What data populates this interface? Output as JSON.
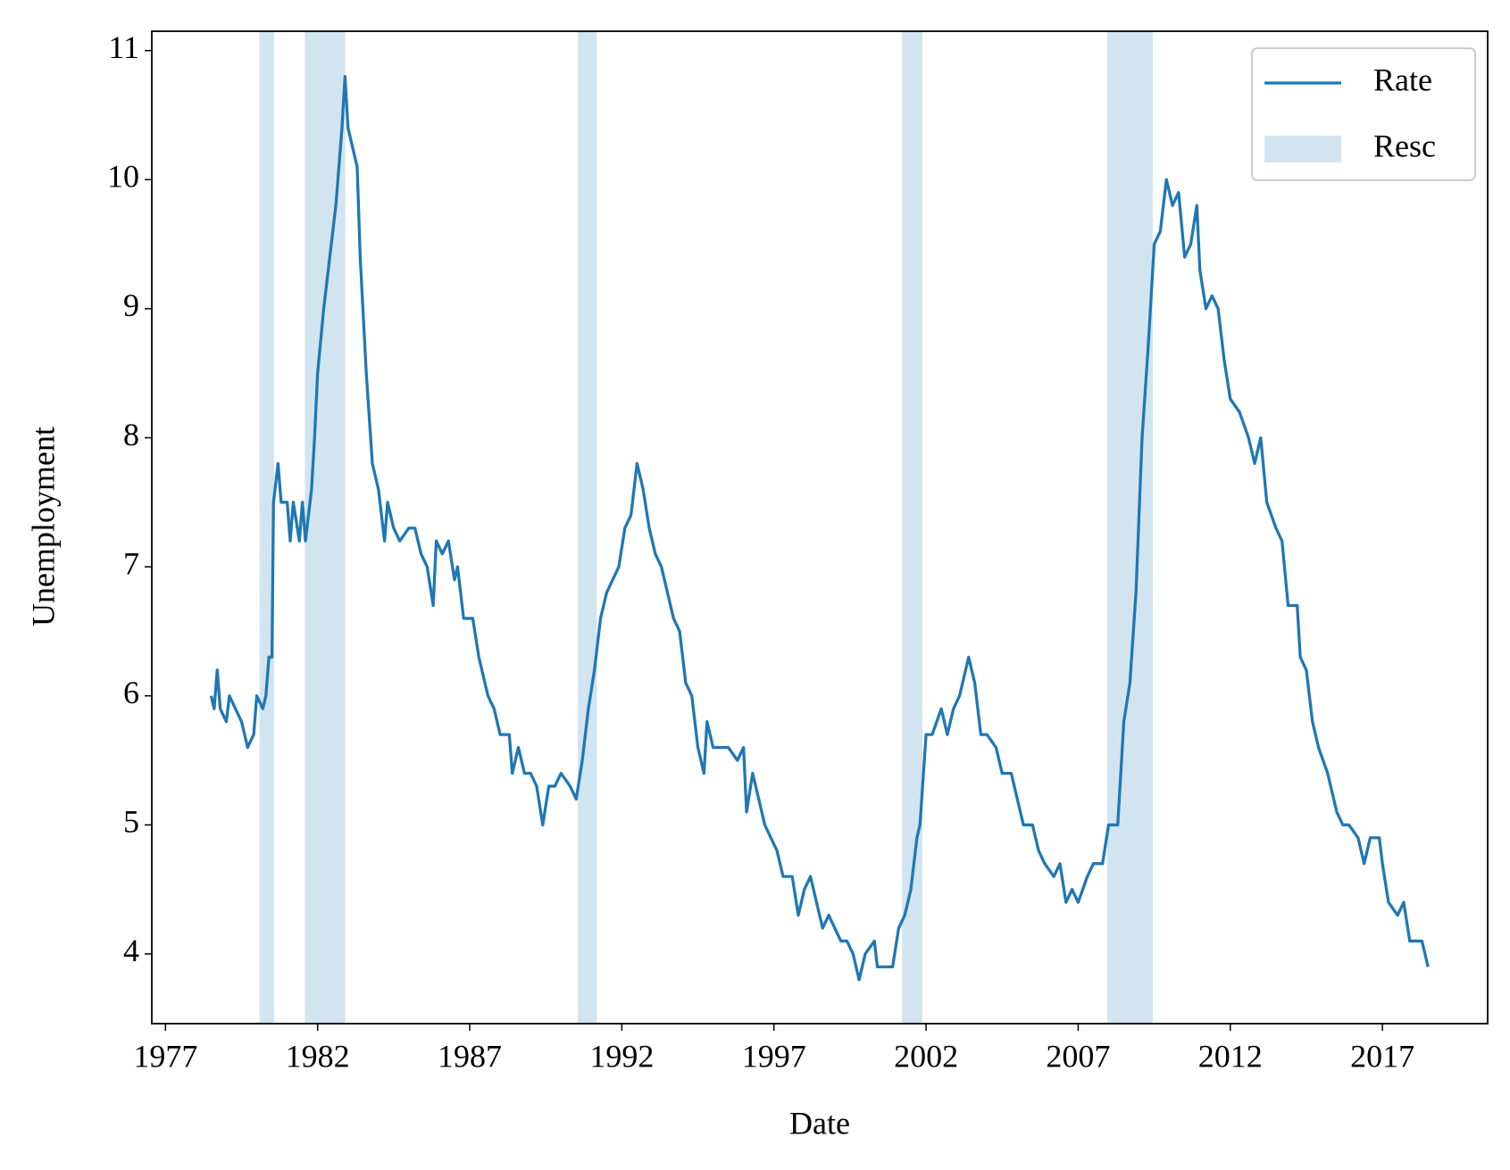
{
  "chart_data": {
    "type": "line",
    "x_label": "Date",
    "y_label": "Unemployment",
    "xlim": [
      1976.55,
      2020.46
    ],
    "ylim": [
      3.46,
      11.15
    ],
    "xticks": [
      1977,
      1982,
      1987,
      1992,
      1997,
      2002,
      2007,
      2012,
      2017
    ],
    "yticks": [
      4,
      5,
      6,
      7,
      8,
      9,
      10,
      11
    ],
    "grid": false,
    "legend": "upper right",
    "shaded": {
      "name": "Resc",
      "color": "#1f77b4",
      "alpha": 0.2,
      "spans": [
        [
          1980.09,
          1980.57
        ],
        [
          1981.58,
          1982.91
        ],
        [
          1990.55,
          1991.18
        ],
        [
          2001.21,
          2001.88
        ],
        [
          2007.95,
          2009.45
        ]
      ]
    },
    "series": [
      {
        "name": "Rate",
        "color": "#1f77b4",
        "x": [
          1978.5,
          1978.6,
          1978.7,
          1978.8,
          1979.0,
          1979.1,
          1979.3,
          1979.5,
          1979.7,
          1979.9,
          1980.0,
          1980.2,
          1980.3,
          1980.4,
          1980.5,
          1980.55,
          1980.7,
          1980.8,
          1981.0,
          1981.1,
          1981.2,
          1981.4,
          1981.5,
          1981.6,
          1981.8,
          1981.9,
          1982.0,
          1982.2,
          1982.4,
          1982.6,
          1982.8,
          1982.9,
          1983.0,
          1983.3,
          1983.4,
          1983.6,
          1983.8,
          1984.0,
          1984.2,
          1984.3,
          1984.5,
          1984.7,
          1985.0,
          1985.2,
          1985.4,
          1985.6,
          1985.8,
          1985.9,
          1986.1,
          1986.3,
          1986.5,
          1986.6,
          1986.8,
          1987.1,
          1987.3,
          1987.6,
          1987.8,
          1988.0,
          1988.3,
          1988.4,
          1988.6,
          1988.8,
          1989.0,
          1989.2,
          1989.4,
          1989.6,
          1989.8,
          1990.0,
          1990.3,
          1990.5,
          1990.7,
          1990.9,
          1991.1,
          1991.3,
          1991.5,
          1991.7,
          1991.9,
          1992.1,
          1992.3,
          1992.5,
          1992.7,
          1992.9,
          1993.1,
          1993.3,
          1993.5,
          1993.7,
          1993.9,
          1994.1,
          1994.3,
          1994.5,
          1994.7,
          1994.8,
          1995.0,
          1995.3,
          1995.5,
          1995.8,
          1996.0,
          1996.1,
          1996.3,
          1996.5,
          1996.7,
          1996.9,
          1997.1,
          1997.3,
          1997.6,
          1997.8,
          1998.0,
          1998.2,
          1998.4,
          1998.6,
          1998.8,
          1999.0,
          1999.2,
          1999.4,
          1999.6,
          1999.8,
          2000.0,
          2000.3,
          2000.4,
          2000.9,
          2001.1,
          2001.3,
          2001.5,
          2001.7,
          2001.8,
          2002.0,
          2002.2,
          2002.5,
          2002.7,
          2002.9,
          2003.1,
          2003.4,
          2003.6,
          2003.8,
          2004.0,
          2004.3,
          2004.5,
          2004.8,
          2005.0,
          2005.2,
          2005.5,
          2005.7,
          2005.9,
          2006.2,
          2006.4,
          2006.6,
          2006.8,
          2007.0,
          2007.3,
          2007.5,
          2007.8,
          2008.0,
          2008.3,
          2008.5,
          2008.7,
          2008.9,
          2009.1,
          2009.3,
          2009.5,
          2009.7,
          2009.9,
          2010.1,
          2010.3,
          2010.5,
          2010.7,
          2010.9,
          2011.0,
          2011.2,
          2011.4,
          2011.6,
          2011.8,
          2012.0,
          2012.3,
          2012.6,
          2012.8,
          2013.0,
          2013.2,
          2013.5,
          2013.7,
          2013.9,
          2014.2,
          2014.3,
          2014.5,
          2014.7,
          2014.9,
          2015.2,
          2015.5,
          2015.7,
          2015.9,
          2016.2,
          2016.4,
          2016.6,
          2016.9,
          2017.0,
          2017.2,
          2017.5,
          2017.7,
          2017.9,
          2018.3,
          2018.5
        ],
        "values": [
          6.0,
          5.9,
          6.2,
          5.9,
          5.8,
          6.0,
          5.9,
          5.8,
          5.6,
          5.7,
          6.0,
          5.9,
          6.0,
          6.3,
          6.3,
          7.5,
          7.8,
          7.5,
          7.5,
          7.2,
          7.5,
          7.2,
          7.5,
          7.2,
          7.6,
          8.0,
          8.5,
          9.0,
          9.4,
          9.8,
          10.4,
          10.8,
          10.4,
          10.1,
          9.4,
          8.5,
          7.8,
          7.6,
          7.2,
          7.5,
          7.3,
          7.2,
          7.3,
          7.3,
          7.1,
          7.0,
          6.7,
          7.2,
          7.1,
          7.2,
          6.9,
          7.0,
          6.6,
          6.6,
          6.3,
          6.0,
          5.9,
          5.7,
          5.7,
          5.4,
          5.6,
          5.4,
          5.4,
          5.3,
          5.0,
          5.3,
          5.3,
          5.4,
          5.3,
          5.2,
          5.5,
          5.9,
          6.2,
          6.6,
          6.8,
          6.9,
          7.0,
          7.3,
          7.4,
          7.8,
          7.6,
          7.3,
          7.1,
          7.0,
          6.8,
          6.6,
          6.5,
          6.1,
          6.0,
          5.6,
          5.4,
          5.8,
          5.6,
          5.6,
          5.6,
          5.5,
          5.6,
          5.1,
          5.4,
          5.2,
          5.0,
          4.9,
          4.8,
          4.6,
          4.6,
          4.3,
          4.5,
          4.6,
          4.4,
          4.2,
          4.3,
          4.2,
          4.1,
          4.1,
          4.0,
          3.8,
          4.0,
          4.1,
          3.9,
          3.9,
          4.2,
          4.3,
          4.5,
          4.9,
          5.0,
          5.7,
          5.7,
          5.9,
          5.7,
          5.9,
          6.0,
          6.3,
          6.1,
          5.7,
          5.7,
          5.6,
          5.4,
          5.4,
          5.2,
          5.0,
          5.0,
          4.8,
          4.7,
          4.6,
          4.7,
          4.4,
          4.5,
          4.4,
          4.6,
          4.7,
          4.7,
          5.0,
          5.0,
          5.8,
          6.1,
          6.8,
          8.0,
          8.7,
          9.5,
          9.6,
          10.0,
          9.8,
          9.9,
          9.4,
          9.5,
          9.8,
          9.3,
          9.0,
          9.1,
          9.0,
          8.6,
          8.3,
          8.2,
          8.0,
          7.8,
          8.0,
          7.5,
          7.3,
          7.2,
          6.7,
          6.7,
          6.3,
          6.2,
          5.8,
          5.6,
          5.4,
          5.1,
          5.0,
          5.0,
          4.9,
          4.7,
          4.9,
          4.9,
          4.7,
          4.4,
          4.3,
          4.4,
          4.1,
          4.1,
          3.9
        ]
      }
    ]
  }
}
